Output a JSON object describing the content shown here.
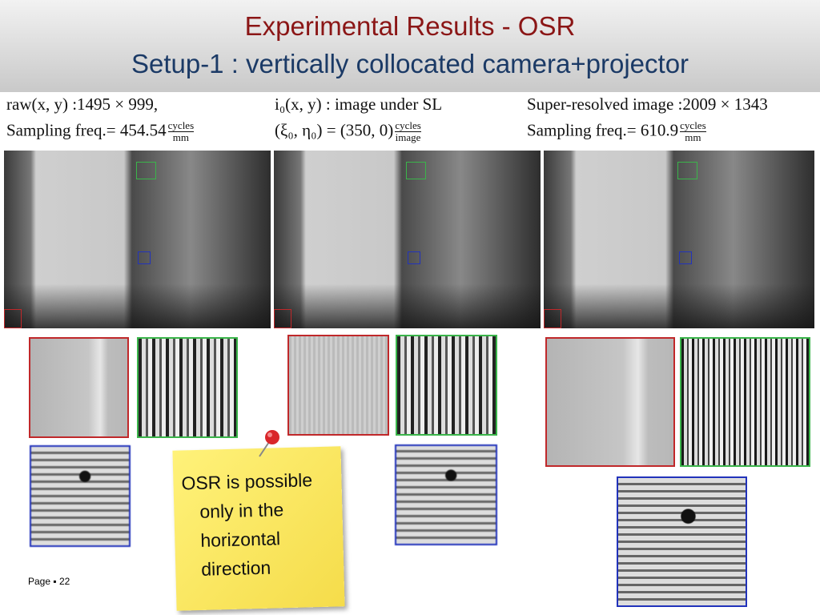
{
  "title": "Experimental Results - OSR",
  "subtitle": "Setup-1 : vertically collocated camera+projector",
  "panels": [
    {
      "line1": "raw(x, y) :1495 × 999,",
      "line2": "Sampling freq.= 454.54",
      "frac_num": "cycles",
      "frac_den": "mm"
    },
    {
      "line1": "i₀(x, y) :  image under SL",
      "line2": "(ξ₀, η₀) = (350, 0)",
      "frac_num": "cycles",
      "frac_den": "image"
    },
    {
      "line1": "Super-resolved image :2009 × 1343",
      "line2": "Sampling freq.= 610.9",
      "frac_num": "cycles",
      "frac_den": "mm"
    }
  ],
  "note": {
    "lines": [
      "OSR is possible",
      "only in the",
      "horizontal",
      "direction"
    ]
  },
  "footer": "Page ▪ 22"
}
